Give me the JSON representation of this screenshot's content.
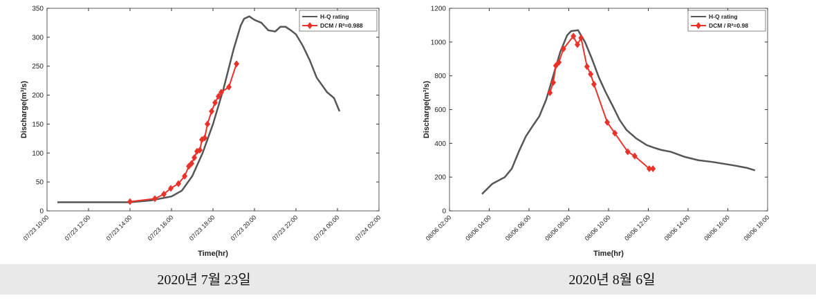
{
  "chart_data": [
    {
      "type": "line",
      "ylabel": "Discharge(m³/s)",
      "xlabel": "Time(hr)",
      "caption": "2020년 7월 23일",
      "xlim": [
        "07/23 10:00",
        "07/24 02:00"
      ],
      "xticks": [
        "07/23 10:00",
        "07/23 12:00",
        "07/23 14:00",
        "07/23 16:00",
        "07/23 18:00",
        "07/23 20:00",
        "07/23 22:00",
        "07/24 00:00",
        "07/24 02:00"
      ],
      "ylim": [
        0,
        350
      ],
      "yticks": [
        0,
        50,
        100,
        150,
        200,
        250,
        300,
        350
      ],
      "series": [
        {
          "name": "H-Q rating",
          "color": "#555555",
          "x": [
            "07/23 10:30",
            "07/23 12:00",
            "07/23 14:00",
            "07/23 15:00",
            "07/23 16:00",
            "07/23 16:30",
            "07/23 17:00",
            "07/23 17:30",
            "07/23 18:00",
            "07/23 18:30",
            "07/23 19:00",
            "07/23 19:20",
            "07/23 19:30",
            "07/23 19:45",
            "07/23 20:00",
            "07/23 20:20",
            "07/23 20:40",
            "07/23 21:00",
            "07/23 21:15",
            "07/23 21:30",
            "07/23 21:45",
            "07/23 22:00",
            "07/23 22:20",
            "07/23 22:40",
            "07/23 23:00",
            "07/23 23:30",
            "07/23 23:50",
            "07/24 00:06"
          ],
          "values": [
            15,
            15,
            15,
            18,
            25,
            35,
            60,
            100,
            150,
            210,
            280,
            320,
            332,
            336,
            330,
            325,
            312,
            310,
            318,
            318,
            312,
            305,
            285,
            260,
            230,
            205,
            195,
            172
          ]
        },
        {
          "name": "DCM / R²=0.988",
          "color": "#e8332a",
          "x": [
            "07/23 14:00",
            "07/23 15:12",
            "07/23 15:38",
            "07/23 15:58",
            "07/23 16:20",
            "07/23 16:38",
            "07/23 16:50",
            "07/23 16:58",
            "07/23 17:06",
            "07/23 17:14",
            "07/23 17:22",
            "07/23 17:28",
            "07/23 17:36",
            "07/23 17:44",
            "07/23 17:56",
            "07/23 18:06",
            "07/23 18:16",
            "07/23 18:24",
            "07/23 18:46",
            "07/23 19:08"
          ],
          "values": [
            16,
            21,
            29,
            39,
            47,
            60,
            77,
            82,
            92,
            103,
            105,
            123,
            126,
            150,
            172,
            187,
            198,
            205,
            214,
            254
          ]
        }
      ]
    },
    {
      "type": "line",
      "ylabel": "Discharge(m³/s)",
      "xlabel": "Time(hr)",
      "caption": "2020년 8월 6일",
      "xlim": [
        "08/06 02:00",
        "08/06 18:00"
      ],
      "xticks": [
        "08/06 02:00",
        "08/06 04:00",
        "08/06 06:00",
        "08/06 08:00",
        "08/06 10:00",
        "08/06 12:00",
        "08/06 14:00",
        "08/06 16:00",
        "08/06 18:00"
      ],
      "ylim": [
        0,
        1200
      ],
      "yticks": [
        0,
        200,
        400,
        600,
        800,
        1000,
        1200
      ],
      "series": [
        {
          "name": "H-Q rating",
          "color": "#555555",
          "x": [
            "08/06 03:38",
            "08/06 04:09",
            "08/06 04:47",
            "08/06 05:08",
            "08/06 05:29",
            "08/06 05:50",
            "08/06 06:10",
            "08/06 06:31",
            "08/06 06:52",
            "08/06 07:13",
            "08/06 07:34",
            "08/06 07:55",
            "08/06 08:07",
            "08/06 08:28",
            "08/06 08:49",
            "08/06 09:10",
            "08/06 09:31",
            "08/06 09:52",
            "08/06 10:13",
            "08/06 10:33",
            "08/06 10:54",
            "08/06 11:23",
            "08/06 11:55",
            "08/06 12:16",
            "08/06 12:37",
            "08/06 13:08",
            "08/06 13:50",
            "08/06 14:31",
            "08/06 15:13",
            "08/06 16:16",
            "08/06 16:57",
            "08/06 17:22"
          ],
          "values": [
            100,
            160,
            200,
            250,
            350,
            440,
            500,
            560,
            660,
            800,
            940,
            1040,
            1065,
            1070,
            1000,
            900,
            790,
            700,
            620,
            540,
            480,
            430,
            390,
            375,
            362,
            350,
            320,
            300,
            290,
            270,
            255,
            240
          ]
        },
        {
          "name": "DCM / R²=0.98",
          "color": "#e8332a",
          "x": [
            "08/06 07:03",
            "08/06 07:13",
            "08/06 07:21",
            "08/06 07:30",
            "08/06 07:44",
            "08/06 08:14",
            "08/06 08:26",
            "08/06 08:37",
            "08/06 08:55",
            "08/06 09:06",
            "08/06 09:16",
            "08/06 09:56",
            "08/06 10:19",
            "08/06 10:58",
            "08/06 11:19",
            "08/06 12:03",
            "08/06 12:14"
          ],
          "values": [
            700,
            760,
            860,
            880,
            960,
            1035,
            985,
            1025,
            855,
            810,
            750,
            525,
            460,
            350,
            325,
            250,
            250
          ]
        }
      ]
    }
  ]
}
